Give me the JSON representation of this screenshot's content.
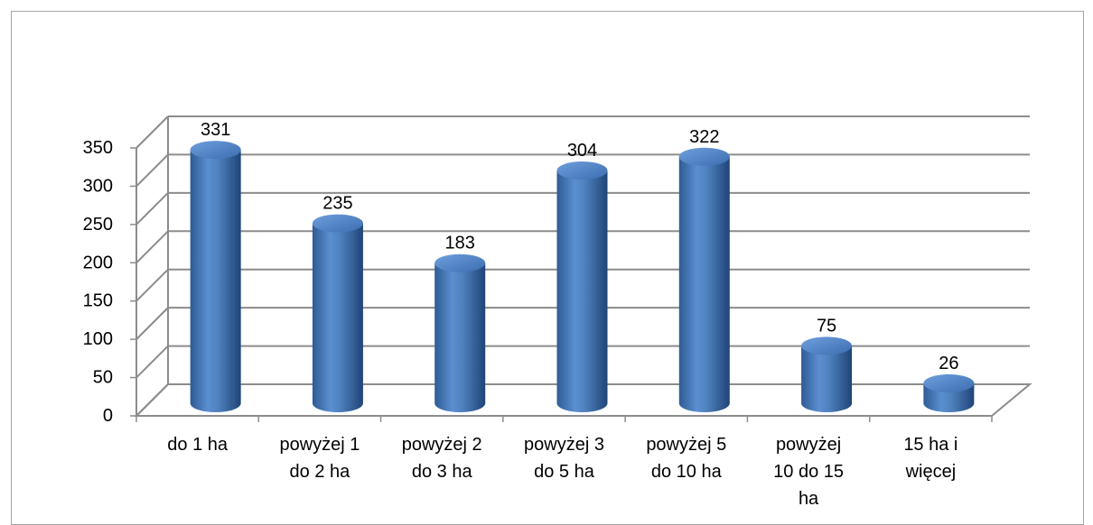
{
  "chart_data": {
    "type": "bar",
    "title": "",
    "xlabel": "",
    "ylabel": "",
    "categories": [
      [
        "do 1 ha"
      ],
      [
        "powyżej 1",
        "do 2 ha"
      ],
      [
        "powyżej 2",
        "do 3 ha"
      ],
      [
        "powyżej 3",
        "do 5 ha"
      ],
      [
        "powyżej 5",
        "do 10 ha"
      ],
      [
        "powyżej",
        "10  do 15",
        "ha"
      ],
      [
        "15 ha i",
        "więcej"
      ]
    ],
    "values": [
      331,
      235,
      183,
      304,
      322,
      75,
      26
    ],
    "value_labels": [
      "331",
      "235",
      "183",
      "304",
      "322",
      "75",
      "26"
    ],
    "ylim": [
      0,
      350
    ],
    "yticks": [
      "0",
      "50",
      "100",
      "150",
      "200",
      "250",
      "300",
      "350"
    ],
    "grid": true,
    "bar_style": "3d-cylinder",
    "bar_color": "#4f81bd",
    "grid_color": "#8c8c8c"
  }
}
